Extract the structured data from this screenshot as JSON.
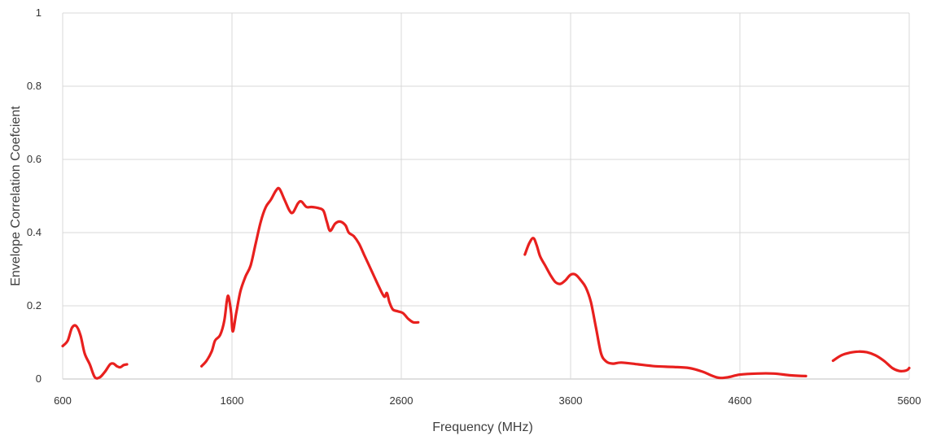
{
  "chart_data": {
    "type": "line",
    "title": "",
    "xlabel": "Frequency (MHz)",
    "ylabel": "Envelope Correlation Coefcient",
    "xlim": [
      600,
      5600
    ],
    "ylim": [
      0,
      1
    ],
    "x_ticks": [
      600,
      1600,
      2600,
      3600,
      4600,
      5600
    ],
    "y_ticks": [
      {
        "value": 0,
        "label": "0"
      },
      {
        "value": 0.2,
        "label": "0.2"
      },
      {
        "value": 0.4,
        "label": "0.4"
      },
      {
        "value": 0.6,
        "label": "0.6"
      },
      {
        "value": 0.8,
        "label": "0.8"
      },
      {
        "value": 1,
        "label": "1"
      }
    ],
    "grid": true,
    "legend": "none",
    "series_color": "#e8201e",
    "series": [
      {
        "segments": [
          [
            [
              600,
              0.09
            ],
            [
              630,
              0.105
            ],
            [
              655,
              0.14
            ],
            [
              680,
              0.145
            ],
            [
              705,
              0.12
            ],
            [
              730,
              0.07
            ],
            [
              760,
              0.04
            ],
            [
              790,
              0.005
            ],
            [
              820,
              0.005
            ],
            [
              850,
              0.02
            ],
            [
              880,
              0.04
            ],
            [
              900,
              0.042
            ],
            [
              920,
              0.035
            ],
            [
              940,
              0.032
            ],
            [
              960,
              0.038
            ],
            [
              980,
              0.04
            ]
          ],
          [
            [
              1420,
              0.035
            ],
            [
              1450,
              0.05
            ],
            [
              1480,
              0.075
            ],
            [
              1500,
              0.105
            ],
            [
              1530,
              0.12
            ],
            [
              1555,
              0.16
            ],
            [
              1570,
              0.215
            ],
            [
              1580,
              0.225
            ],
            [
              1595,
              0.18
            ],
            [
              1605,
              0.13
            ],
            [
              1625,
              0.18
            ],
            [
              1650,
              0.24
            ],
            [
              1680,
              0.28
            ],
            [
              1710,
              0.31
            ],
            [
              1740,
              0.37
            ],
            [
              1770,
              0.43
            ],
            [
              1800,
              0.47
            ],
            [
              1830,
              0.49
            ],
            [
              1860,
              0.515
            ],
            [
              1880,
              0.52
            ],
            [
              1910,
              0.49
            ],
            [
              1940,
              0.46
            ],
            [
              1960,
              0.455
            ],
            [
              1990,
              0.48
            ],
            [
              2010,
              0.485
            ],
            [
              2040,
              0.47
            ],
            [
              2070,
              0.47
            ],
            [
              2110,
              0.467
            ],
            [
              2140,
              0.46
            ],
            [
              2160,
              0.43
            ],
            [
              2180,
              0.405
            ],
            [
              2210,
              0.425
            ],
            [
              2240,
              0.43
            ],
            [
              2270,
              0.42
            ],
            [
              2290,
              0.4
            ],
            [
              2320,
              0.39
            ],
            [
              2350,
              0.37
            ],
            [
              2380,
              0.34
            ],
            [
              2410,
              0.31
            ],
            [
              2440,
              0.28
            ],
            [
              2470,
              0.25
            ],
            [
              2500,
              0.225
            ],
            [
              2515,
              0.235
            ],
            [
              2530,
              0.21
            ],
            [
              2550,
              0.19
            ],
            [
              2580,
              0.185
            ],
            [
              2610,
              0.18
            ],
            [
              2640,
              0.165
            ],
            [
              2670,
              0.155
            ],
            [
              2700,
              0.155
            ]
          ],
          [
            [
              3330,
              0.34
            ],
            [
              3355,
              0.37
            ],
            [
              3380,
              0.385
            ],
            [
              3400,
              0.365
            ],
            [
              3420,
              0.335
            ],
            [
              3450,
              0.31
            ],
            [
              3480,
              0.285
            ],
            [
              3510,
              0.265
            ],
            [
              3540,
              0.26
            ],
            [
              3570,
              0.27
            ],
            [
              3600,
              0.285
            ],
            [
              3630,
              0.285
            ],
            [
              3660,
              0.27
            ],
            [
              3690,
              0.25
            ],
            [
              3720,
              0.21
            ],
            [
              3750,
              0.14
            ],
            [
              3780,
              0.07
            ],
            [
              3810,
              0.048
            ],
            [
              3850,
              0.042
            ],
            [
              3900,
              0.045
            ],
            [
              4000,
              0.04
            ],
            [
              4100,
              0.035
            ],
            [
              4200,
              0.033
            ],
            [
              4300,
              0.03
            ],
            [
              4380,
              0.02
            ],
            [
              4430,
              0.01
            ],
            [
              4480,
              0.003
            ],
            [
              4530,
              0.005
            ],
            [
              4600,
              0.012
            ],
            [
              4700,
              0.015
            ],
            [
              4800,
              0.015
            ],
            [
              4900,
              0.01
            ],
            [
              4990,
              0.008
            ]
          ],
          [
            [
              5150,
              0.05
            ],
            [
              5200,
              0.065
            ],
            [
              5250,
              0.072
            ],
            [
              5300,
              0.075
            ],
            [
              5350,
              0.073
            ],
            [
              5400,
              0.065
            ],
            [
              5450,
              0.05
            ],
            [
              5500,
              0.03
            ],
            [
              5540,
              0.022
            ],
            [
              5570,
              0.022
            ],
            [
              5590,
              0.025
            ],
            [
              5600,
              0.03
            ]
          ]
        ]
      }
    ]
  }
}
